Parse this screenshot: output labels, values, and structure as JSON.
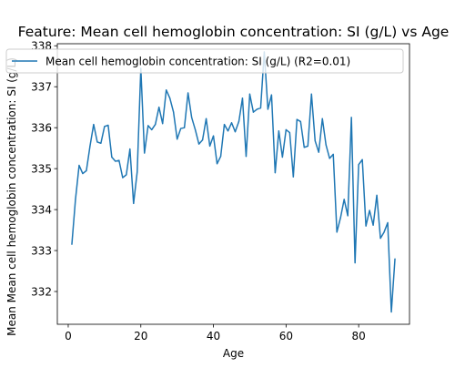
{
  "chart_data": {
    "type": "line",
    "title": "Feature: Mean cell hemoglobin concentration: SI (g/L) vs Age",
    "xlabel": "Age",
    "ylabel": "Mean Mean cell hemoglobin concentration: SI (g/L)",
    "xlim": [
      -3,
      94
    ],
    "ylim": [
      331.2,
      338.05
    ],
    "xticks": [
      0,
      20,
      40,
      60,
      80
    ],
    "yticks": [
      332,
      333,
      334,
      335,
      336,
      337,
      338
    ],
    "grid": false,
    "legend_position": "top",
    "series": [
      {
        "name": "Mean cell hemoglobin concentration: SI (g/L) (R2=0.01)",
        "color": "#1f77b4",
        "x": [
          1,
          2,
          3,
          4,
          5,
          6,
          7,
          8,
          9,
          10,
          11,
          12,
          13,
          14,
          15,
          16,
          17,
          18,
          19,
          20,
          21,
          22,
          23,
          24,
          25,
          26,
          27,
          28,
          29,
          30,
          31,
          32,
          33,
          34,
          35,
          36,
          37,
          38,
          39,
          40,
          41,
          42,
          43,
          44,
          45,
          46,
          47,
          48,
          49,
          50,
          51,
          52,
          53,
          54,
          55,
          56,
          57,
          58,
          59,
          60,
          61,
          62,
          63,
          64,
          65,
          66,
          67,
          68,
          69,
          70,
          71,
          72,
          73,
          74,
          75,
          76,
          77,
          78,
          79,
          80,
          81,
          82,
          83,
          84,
          85,
          86,
          87,
          88,
          89,
          90
        ],
        "y": [
          333.15,
          334.25,
          335.08,
          334.88,
          334.95,
          335.55,
          336.08,
          335.65,
          335.62,
          336.03,
          336.06,
          335.28,
          335.18,
          335.2,
          334.78,
          334.85,
          335.48,
          334.15,
          334.92,
          337.45,
          335.38,
          336.05,
          335.95,
          336.08,
          336.5,
          336.1,
          336.92,
          336.72,
          336.38,
          335.72,
          335.98,
          336.0,
          336.85,
          336.25,
          335.95,
          335.6,
          335.7,
          336.22,
          335.55,
          335.8,
          335.12,
          335.3,
          336.08,
          335.92,
          336.12,
          335.9,
          336.15,
          336.72,
          335.3,
          336.82,
          336.38,
          336.45,
          336.48,
          337.85,
          336.45,
          336.8,
          334.9,
          335.92,
          335.28,
          335.95,
          335.88,
          334.8,
          336.2,
          336.15,
          335.52,
          335.55,
          336.82,
          335.68,
          335.4,
          336.22,
          335.58,
          335.25,
          335.35,
          333.45,
          333.8,
          334.25,
          333.85,
          336.25,
          332.7,
          335.1,
          335.22,
          333.6,
          333.98,
          333.62,
          334.35,
          333.3,
          333.45,
          333.68,
          331.5,
          332.8
        ]
      }
    ]
  }
}
